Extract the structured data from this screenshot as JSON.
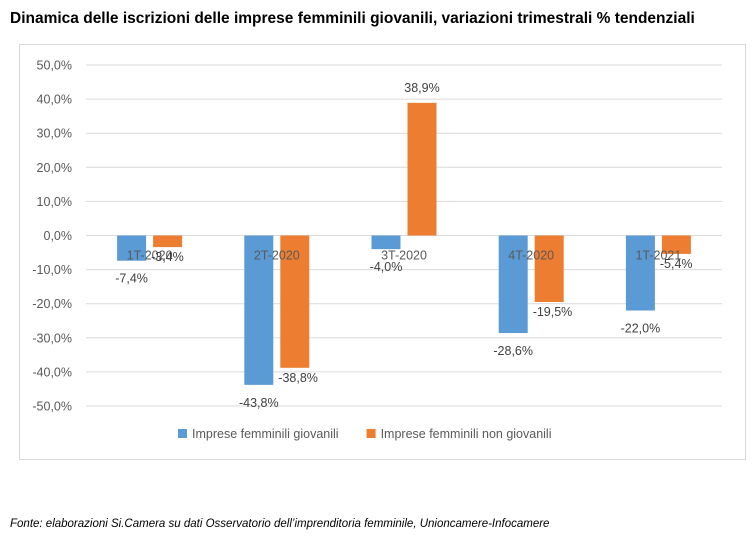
{
  "title": "Dinamica delle iscrizioni delle imprese femminili giovanili, variazioni trimestrali % tendenziali",
  "source": "Fonte: elaborazioni Si.Camera su dati Osservatorio dell’imprenditoria femminile, Unioncamere-Infocamere",
  "chart_data": {
    "type": "bar",
    "title": "Dinamica delle iscrizioni delle imprese femminili giovanili, variazioni trimestrali % tendenziali",
    "categories": [
      "1T-2020",
      "2T-2020",
      "3T-2020",
      "4T-2020",
      "1T-2021"
    ],
    "series": [
      {
        "name": "Imprese femminili giovanili",
        "color": "#5B9BD5",
        "values": [
          -7.4,
          -43.8,
          -4.0,
          -28.6,
          -22.0
        ],
        "labels": [
          "-7,4%",
          "-43,8%",
          "-4,0%",
          "-28,6%",
          "-22,0%"
        ]
      },
      {
        "name": "Imprese femminili non giovanili",
        "color": "#ED7D31",
        "values": [
          -3.4,
          -38.8,
          38.9,
          -19.5,
          -5.4
        ],
        "labels": [
          "-3,4%",
          "-38,8%",
          "38,9%",
          "-19,5%",
          "-5,4%"
        ]
      }
    ],
    "yticks": [
      50,
      40,
      30,
      20,
      10,
      0,
      -10,
      -20,
      -30,
      -40,
      -50
    ],
    "ytick_labels": [
      "50,0%",
      "40,0%",
      "30,0%",
      "20,0%",
      "10,0%",
      "0,0%",
      "-10,0%",
      "-20,0%",
      "-30,0%",
      "-40,0%",
      "-50,0%"
    ],
    "ylim": [
      -50,
      50
    ],
    "grid": true,
    "legend_position": "bottom",
    "xlabel": "",
    "ylabel": ""
  }
}
